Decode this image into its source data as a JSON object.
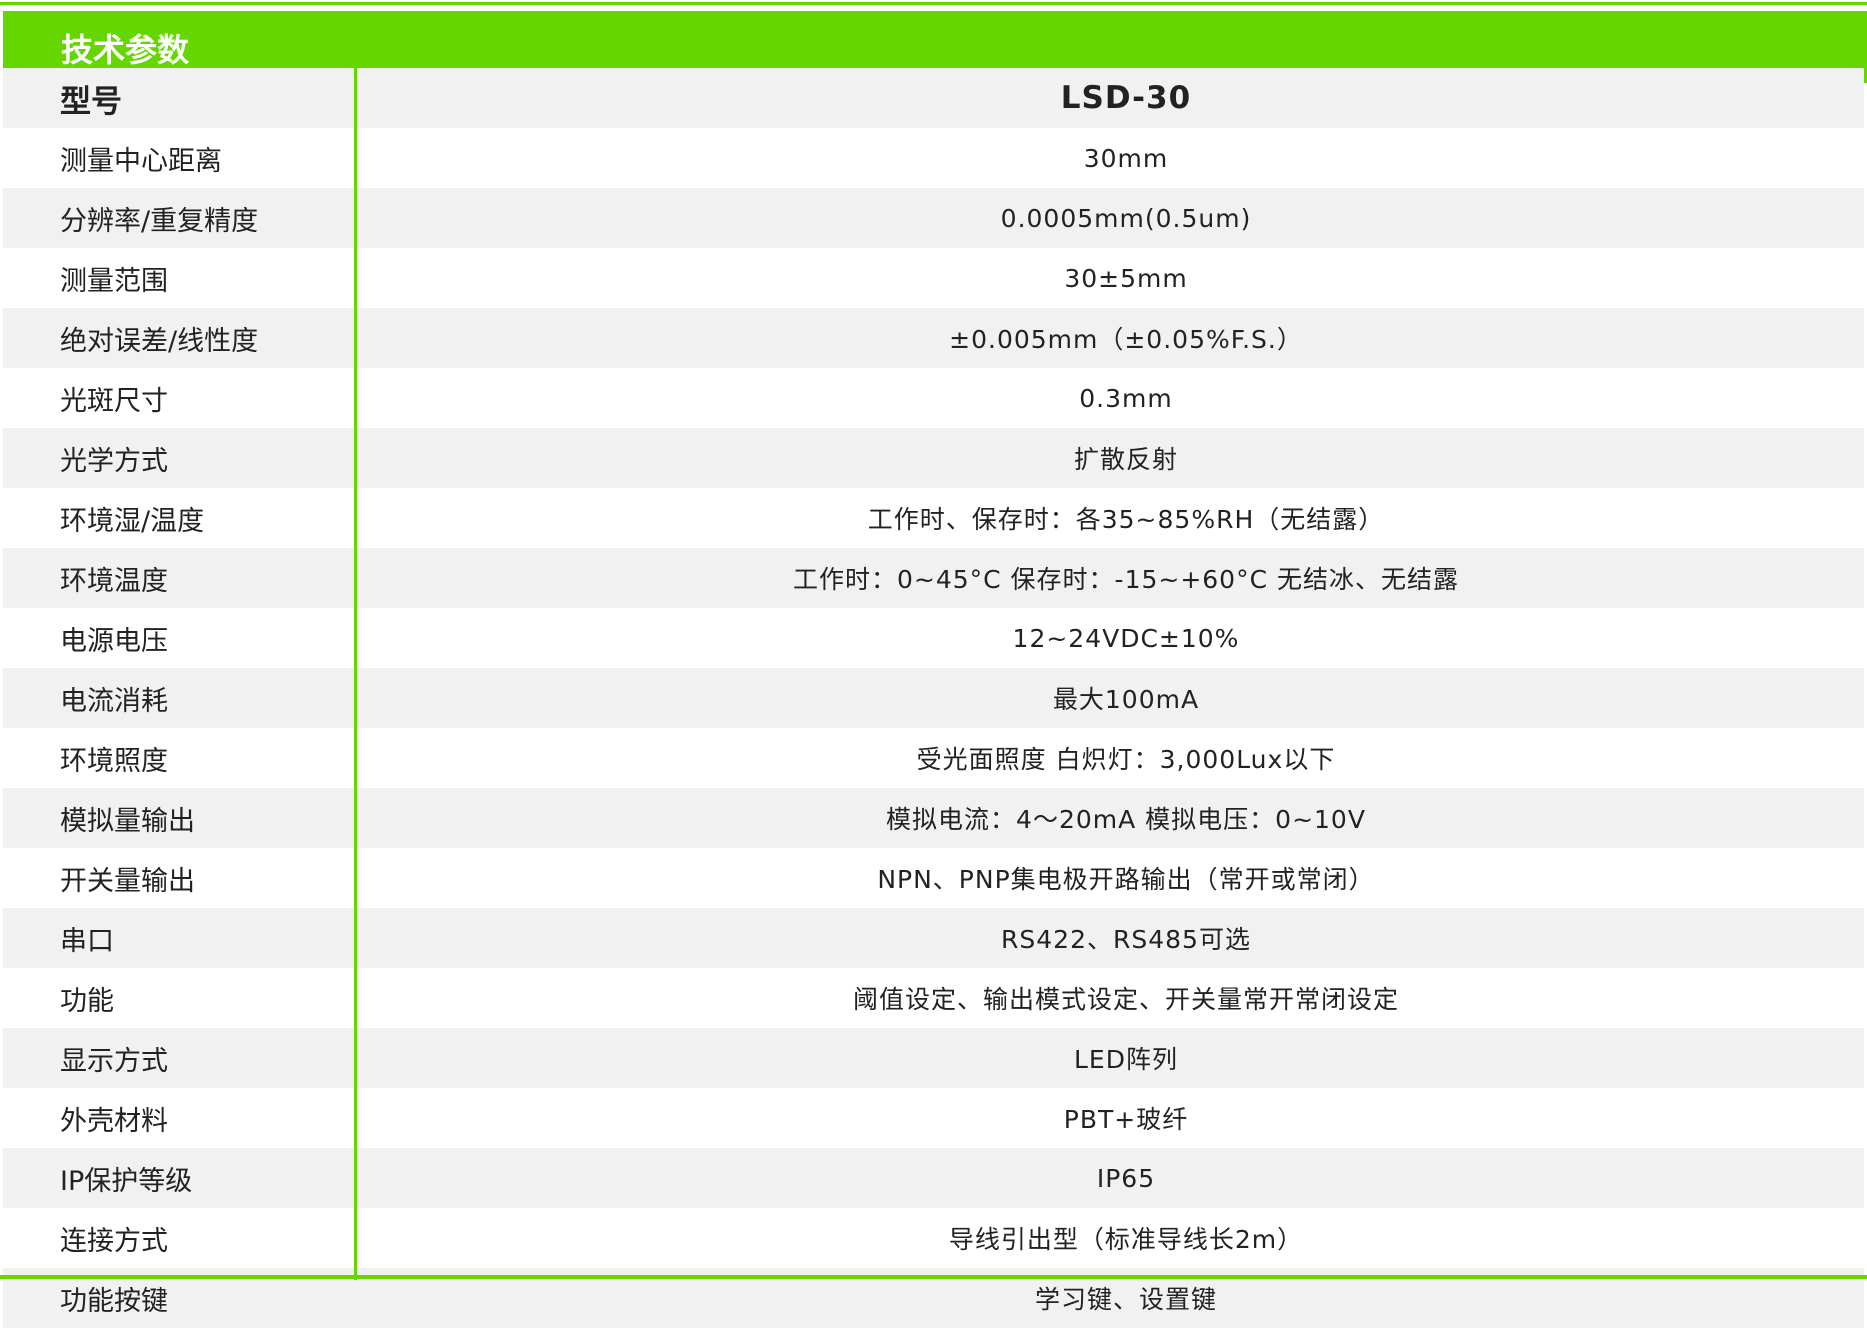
{
  "title": "技术参数",
  "colors": {
    "accent": "#66d600",
    "row_alt": "#f1f1f1"
  },
  "rows": [
    {
      "label": "型号",
      "value": "LSD-30"
    },
    {
      "label": "测量中心距离",
      "value": "30mm"
    },
    {
      "label": "分辨率/重复精度",
      "value": "0.0005mm(0.5um)"
    },
    {
      "label": "测量范围",
      "value": "30±5mm"
    },
    {
      "label": "绝对误差/线性度",
      "value": "±0.005mm（±0.05%F.S.）"
    },
    {
      "label": "光斑尺寸",
      "value": "0.3mm"
    },
    {
      "label": "光学方式",
      "value": "扩散反射"
    },
    {
      "label": "环境湿/温度",
      "value": "工作时、保存时：各35~85%RH（无结露）"
    },
    {
      "label": "环境温度",
      "value": "工作时：0~45°C   保存时：-15~+60°C 无结冰、无结露"
    },
    {
      "label": "电源电压",
      "value": "12~24VDC±10%"
    },
    {
      "label": "电流消耗",
      "value": "最大100mA"
    },
    {
      "label": "环境照度",
      "value": "受光面照度   白炽灯：3,000Lux以下"
    },
    {
      "label": "模拟量输出",
      "value": "模拟电流：4～20mA   模拟电压：0~10V"
    },
    {
      "label": "开关量输出",
      "value": "NPN、PNP集电极开路输出（常开或常闭）"
    },
    {
      "label": "串口",
      "value": "RS422、RS485可选"
    },
    {
      "label": "功能",
      "value": "阈值设定、输出模式设定、开关量常开常闭设定"
    },
    {
      "label": "显示方式",
      "value": "LED阵列"
    },
    {
      "label": "外壳材料",
      "value": "PBT+玻纤"
    },
    {
      "label": "IP保护等级",
      "value": "IP65"
    },
    {
      "label": "连接方式",
      "value": "导线引出型（标准导线长2m）"
    },
    {
      "label": "功能按键",
      "value": "学习键、设置键"
    }
  ]
}
